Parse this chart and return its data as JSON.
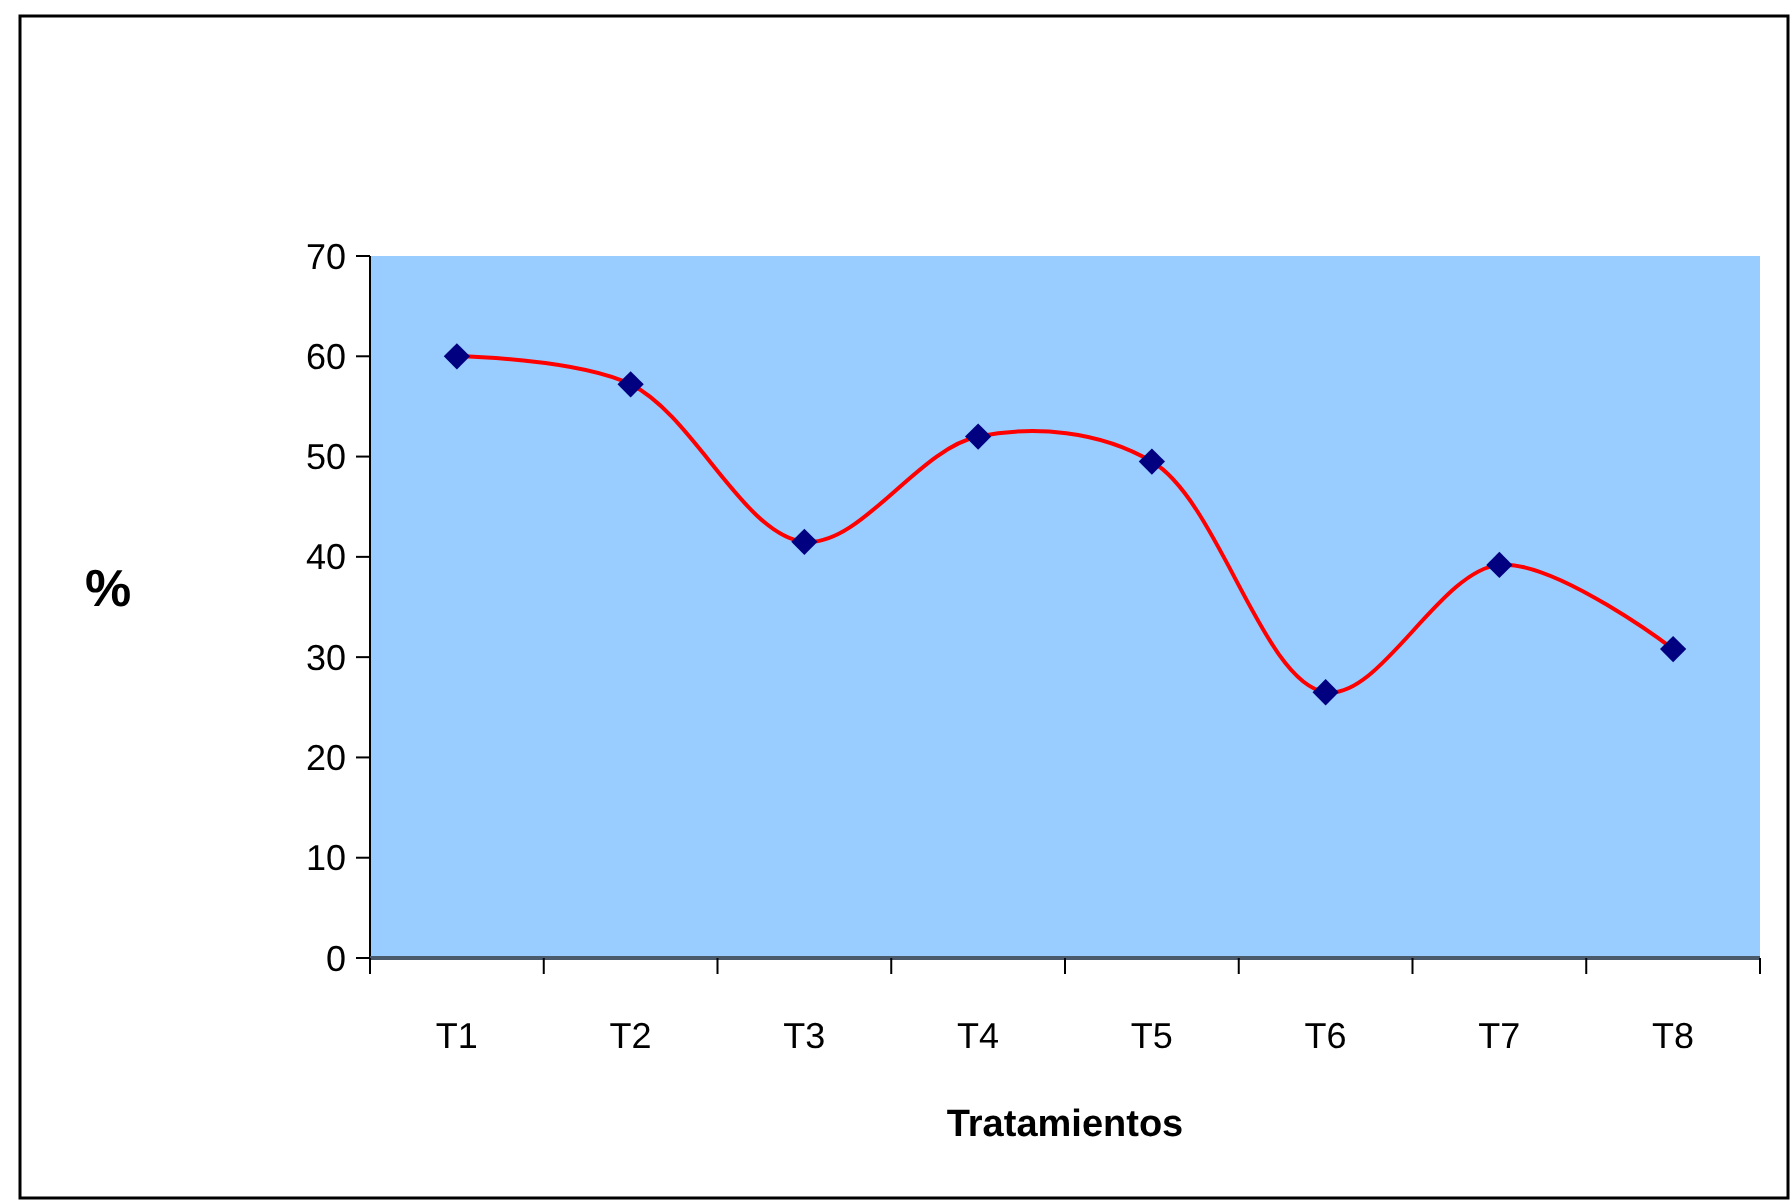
{
  "chart_data": {
    "type": "line",
    "xlabel": "Tratamientos",
    "ylabel": "%",
    "categories": [
      "T1",
      "T2",
      "T3",
      "T4",
      "T5",
      "T6",
      "T7",
      "T8"
    ],
    "series": [
      {
        "color": "#ff0000",
        "values": [
          60,
          57.2,
          41.5,
          52,
          49.5,
          26.5,
          39.2,
          30.8
        ]
      }
    ],
    "ylim": [
      0,
      70
    ],
    "yticks": [
      0,
      10,
      20,
      30,
      40,
      50,
      60,
      70
    ],
    "marker": "diamond"
  }
}
